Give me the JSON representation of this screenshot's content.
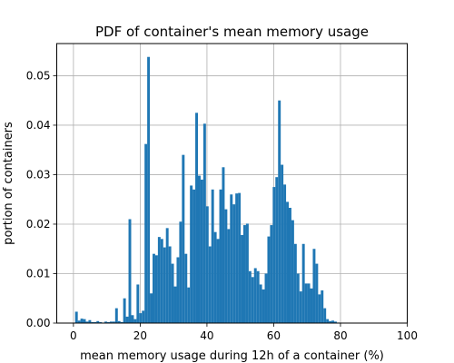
{
  "chart_data": {
    "type": "bar",
    "title": "PDF of container's mean memory usage",
    "xlabel": "mean memory usage during 12h of a container (%)",
    "ylabel": "portion of containers",
    "xlim": [
      -5,
      100
    ],
    "ylim": [
      0,
      0.0565
    ],
    "xticks": [
      0,
      20,
      40,
      60,
      80,
      100
    ],
    "yticks": [
      0.0,
      0.01,
      0.02,
      0.03,
      0.04,
      0.05
    ],
    "ytick_labels": [
      "0.00",
      "0.01",
      "0.02",
      "0.03",
      "0.04",
      "0.05"
    ],
    "grid": true,
    "bar_color": "#1f77b4",
    "bin_width": 0.8,
    "bin_start": 0.5,
    "values": [
      0.0023,
      0.0005,
      0.0009,
      0.0008,
      0.0003,
      0.0006,
      0.0002,
      0.0002,
      0.0004,
      0.0002,
      0.0001,
      0.0003,
      0.0002,
      0.0003,
      0.0003,
      0.003,
      0.0004,
      0.0002,
      0.005,
      0.0013,
      0.021,
      0.0016,
      0.0008,
      0.0078,
      0.002,
      0.0025,
      0.0362,
      0.0538,
      0.006,
      0.014,
      0.0137,
      0.0174,
      0.017,
      0.0153,
      0.0192,
      0.0155,
      0.012,
      0.0074,
      0.0133,
      0.0205,
      0.034,
      0.014,
      0.0072,
      0.0278,
      0.027,
      0.0425,
      0.0298,
      0.029,
      0.0403,
      0.0236,
      0.0155,
      0.027,
      0.0184,
      0.017,
      0.027,
      0.0315,
      0.023,
      0.019,
      0.026,
      0.024,
      0.0262,
      0.0263,
      0.0178,
      0.0198,
      0.0201,
      0.0105,
      0.0093,
      0.0111,
      0.0105,
      0.0078,
      0.0068,
      0.01,
      0.0175,
      0.0198,
      0.0275,
      0.0295,
      0.045,
      0.032,
      0.028,
      0.0245,
      0.0233,
      0.0208,
      0.016,
      0.01,
      0.0064,
      0.016,
      0.008,
      0.008,
      0.007,
      0.015,
      0.012,
      0.0058,
      0.0066,
      0.003,
      0.0008,
      0.0004,
      0.0005,
      0.0003,
      0.0001
    ]
  }
}
